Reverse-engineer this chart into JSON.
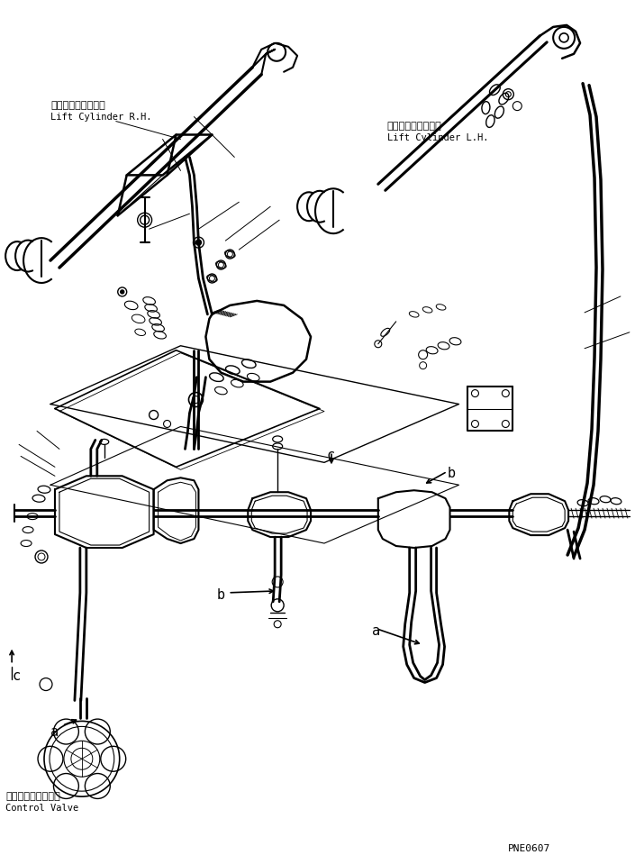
{
  "background_color": "#ffffff",
  "line_color": "#000000",
  "label_top_left_jp": "リフトシリンダ右側",
  "label_top_left_en": "Lift Cylinder R.H.",
  "label_top_right_jp": "リフトシリンダ左側",
  "label_top_right_en": "Lift Cylinder L.H.",
  "label_bottom_left_jp": "コントロールバルブ",
  "label_bottom_left_en": "Control Valve",
  "label_code": "PNE0607",
  "figure_width": 7.15,
  "figure_height": 9.49,
  "dpi": 100
}
